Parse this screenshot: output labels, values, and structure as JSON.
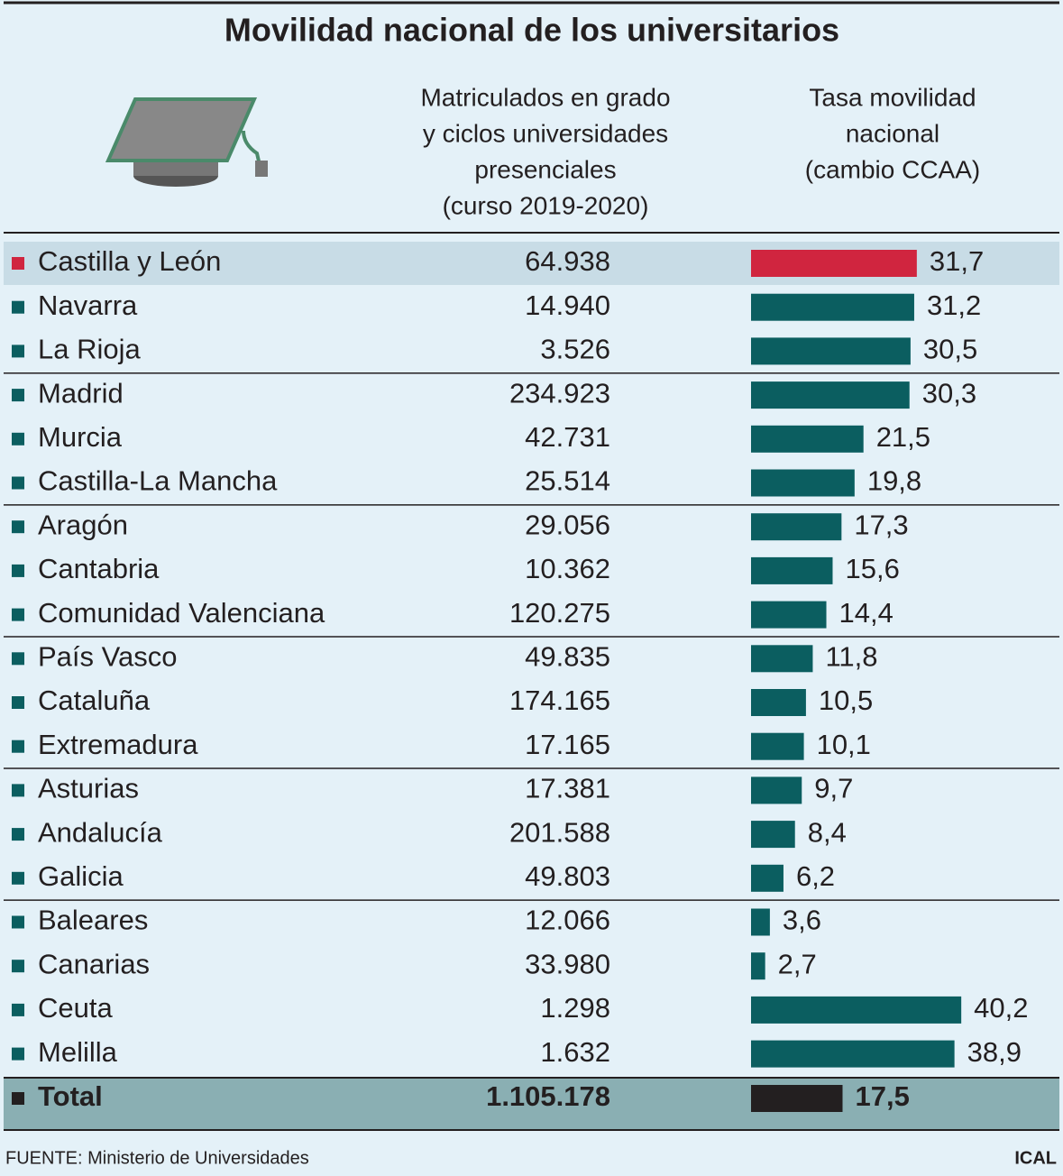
{
  "title": "Movilidad nacional de los universitarios",
  "columns": {
    "enrolled": [
      "Matriculados en grado",
      "y ciclos universidades",
      "presenciales",
      "(curso 2019-2020)"
    ],
    "rate": [
      "Tasa movilidad",
      "nacional",
      "(cambio CCAA)"
    ]
  },
  "rows": [
    {
      "name": "Castilla y León",
      "enrolled": "64.938",
      "rate": 31.7,
      "rate_label": "31,7",
      "color": "#d0253f"
    },
    {
      "name": "Navarra",
      "enrolled": "14.940",
      "rate": 31.2,
      "rate_label": "31,2",
      "color": "#0b5e60"
    },
    {
      "name": "La Rioja",
      "enrolled": "3.526",
      "rate": 30.5,
      "rate_label": "30,5",
      "color": "#0b5e60"
    },
    {
      "name": "Madrid",
      "enrolled": "234.923",
      "rate": 30.3,
      "rate_label": "30,3",
      "color": "#0b5e60"
    },
    {
      "name": "Murcia",
      "enrolled": "42.731",
      "rate": 21.5,
      "rate_label": "21,5",
      "color": "#0b5e60"
    },
    {
      "name": "Castilla-La Mancha",
      "enrolled": "25.514",
      "rate": 19.8,
      "rate_label": "19,8",
      "color": "#0b5e60"
    },
    {
      "name": "Aragón",
      "enrolled": "29.056",
      "rate": 17.3,
      "rate_label": "17,3",
      "color": "#0b5e60"
    },
    {
      "name": "Cantabria",
      "enrolled": "10.362",
      "rate": 15.6,
      "rate_label": "15,6",
      "color": "#0b5e60"
    },
    {
      "name": "Comunidad Valenciana",
      "enrolled": "120.275",
      "rate": 14.4,
      "rate_label": "14,4",
      "color": "#0b5e60"
    },
    {
      "name": "País Vasco",
      "enrolled": "49.835",
      "rate": 11.8,
      "rate_label": "11,8",
      "color": "#0b5e60"
    },
    {
      "name": "Cataluña",
      "enrolled": "174.165",
      "rate": 10.5,
      "rate_label": "10,5",
      "color": "#0b5e60"
    },
    {
      "name": "Extremadura",
      "enrolled": "17.165",
      "rate": 10.1,
      "rate_label": "10,1",
      "color": "#0b5e60"
    },
    {
      "name": "Asturias",
      "enrolled": "17.381",
      "rate": 9.7,
      "rate_label": "9,7",
      "color": "#0b5e60"
    },
    {
      "name": "Andalucía",
      "enrolled": "201.588",
      "rate": 8.4,
      "rate_label": "8,4",
      "color": "#0b5e60"
    },
    {
      "name": "Galicia",
      "enrolled": "49.803",
      "rate": 6.2,
      "rate_label": "6,2",
      "color": "#0b5e60"
    },
    {
      "name": "Baleares",
      "enrolled": "12.066",
      "rate": 3.6,
      "rate_label": "3,6",
      "color": "#0b5e60"
    },
    {
      "name": "Canarias",
      "enrolled": "33.980",
      "rate": 2.7,
      "rate_label": "2,7",
      "color": "#0b5e60"
    },
    {
      "name": "Ceuta",
      "enrolled": "1.298",
      "rate": 40.2,
      "rate_label": "40,2",
      "color": "#0b5e60"
    },
    {
      "name": "Melilla",
      "enrolled": "1.632",
      "rate": 38.9,
      "rate_label": "38,9",
      "color": "#0b5e60"
    }
  ],
  "total": {
    "name": "Total",
    "enrolled": "1.105.178",
    "rate": 17.5,
    "rate_label": "17,5",
    "color": "#231f20"
  },
  "footer": {
    "source": "FUENTE: Ministerio de Universidades",
    "credit": "ICAL"
  }
}
